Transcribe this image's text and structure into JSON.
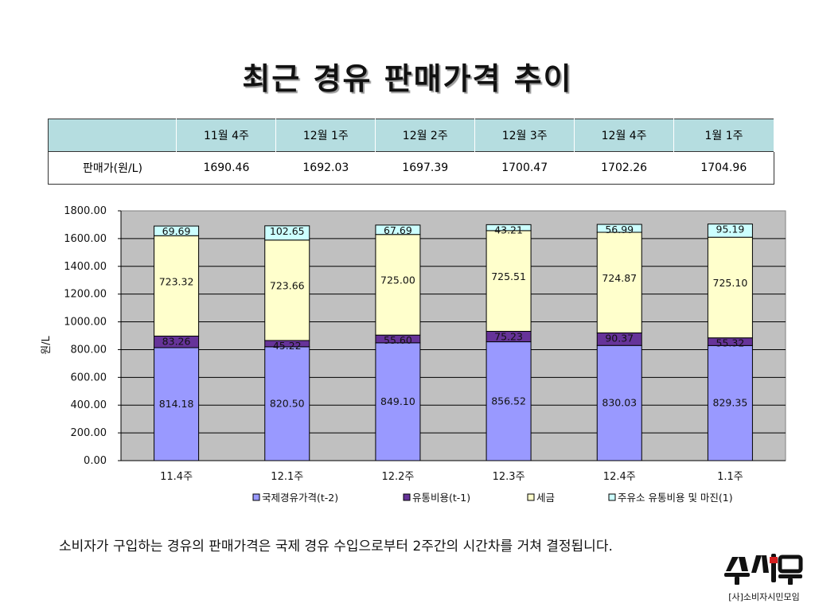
{
  "title": "최근 경유 판매가격 추이",
  "table": {
    "headers": [
      "",
      "11월 4주",
      "12월 1주",
      "12월 2주",
      "12월 3주",
      "12월 4주",
      "1월 1주"
    ],
    "row_label": "판매가(원/L)",
    "values": [
      "1690.46",
      "1692.03",
      "1697.39",
      "1700.47",
      "1702.26",
      "1704.96"
    ]
  },
  "chart_data": {
    "type": "bar",
    "stacked": true,
    "categories": [
      "11.4주",
      "12.1주",
      "12.2주",
      "12.3주",
      "12.4주",
      "1.1주"
    ],
    "ylabel": "원/L",
    "ylim": [
      0,
      1800
    ],
    "yticks": [
      "0.00",
      "200.00",
      "400.00",
      "600.00",
      "800.00",
      "1000.00",
      "1200.00",
      "1400.00",
      "1600.00",
      "1800.00"
    ],
    "grid": true,
    "legend_position": "bottom",
    "series": [
      {
        "name": "국제경유가격(t-2)",
        "color": "#9999ff",
        "values": [
          814.18,
          820.5,
          849.1,
          856.52,
          830.03,
          829.35
        ],
        "labels": [
          "814.18",
          "820.50",
          "849.10",
          "856.52",
          "830.03",
          "829.35"
        ]
      },
      {
        "name": "유통비용(t-1)",
        "color": "#663399",
        "values": [
          83.26,
          45.22,
          55.6,
          75.23,
          90.37,
          55.32
        ],
        "labels": [
          "83.26",
          "45.22",
          "55.60",
          "75.23",
          "90.37",
          "55.32"
        ]
      },
      {
        "name": "세금",
        "color": "#ffffcc",
        "values": [
          723.32,
          723.66,
          725.0,
          725.51,
          724.87,
          725.1
        ],
        "labels": [
          "723.32",
          "723.66",
          "725.00",
          "725.51",
          "724.87",
          "725.10"
        ]
      },
      {
        "name": "주유소 유통비용 및 마진(1)",
        "color": "#ccffff",
        "values": [
          69.69,
          102.65,
          67.69,
          43.21,
          56.99,
          95.19
        ],
        "labels": [
          "69.69",
          "102.65",
          "67.69",
          "43.21",
          "56.99",
          "95.19"
        ]
      }
    ],
    "plot_background": "#c0c0c0"
  },
  "caption": "소비자가 구입하는 경유의 판매가격은 국제 경유 수입으로부터 2주간의 시간차를 거쳐 결정됩니다.",
  "logo": {
    "mark": "소시모",
    "text": "[사]소비자시민모임"
  }
}
